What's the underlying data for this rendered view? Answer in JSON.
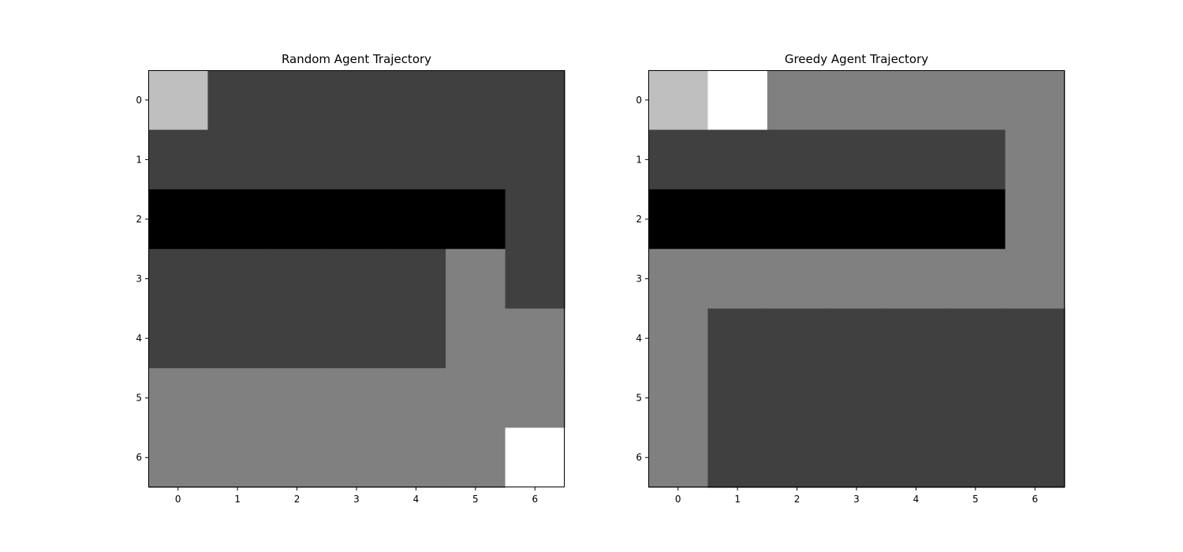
{
  "chart_data": [
    {
      "type": "heatmap",
      "title": "Random Agent Trajectory",
      "x_ticks": [
        "0",
        "1",
        "2",
        "3",
        "4",
        "5",
        "6"
      ],
      "y_ticks": [
        "0",
        "1",
        "2",
        "3",
        "4",
        "5",
        "6"
      ],
      "colormap": "gray",
      "value_range": [
        0,
        1
      ],
      "grid": false,
      "values": [
        [
          0.75,
          0.25,
          0.25,
          0.25,
          0.25,
          0.25,
          0.25
        ],
        [
          0.25,
          0.25,
          0.25,
          0.25,
          0.25,
          0.25,
          0.25
        ],
        [
          0.0,
          0.0,
          0.0,
          0.0,
          0.0,
          0.0,
          0.25
        ],
        [
          0.25,
          0.25,
          0.25,
          0.25,
          0.25,
          0.5,
          0.25
        ],
        [
          0.25,
          0.25,
          0.25,
          0.25,
          0.25,
          0.5,
          0.5
        ],
        [
          0.5,
          0.5,
          0.5,
          0.5,
          0.5,
          0.5,
          0.5
        ],
        [
          0.5,
          0.5,
          0.5,
          0.5,
          0.5,
          0.5,
          1.0
        ]
      ]
    },
    {
      "type": "heatmap",
      "title": "Greedy Agent Trajectory",
      "x_ticks": [
        "0",
        "1",
        "2",
        "3",
        "4",
        "5",
        "6"
      ],
      "y_ticks": [
        "0",
        "1",
        "2",
        "3",
        "4",
        "5",
        "6"
      ],
      "colormap": "gray",
      "value_range": [
        0,
        1
      ],
      "grid": false,
      "values": [
        [
          0.75,
          1.0,
          0.5,
          0.5,
          0.5,
          0.5,
          0.5
        ],
        [
          0.25,
          0.25,
          0.25,
          0.25,
          0.25,
          0.25,
          0.5
        ],
        [
          0.0,
          0.0,
          0.0,
          0.0,
          0.0,
          0.0,
          0.5
        ],
        [
          0.5,
          0.5,
          0.5,
          0.5,
          0.5,
          0.5,
          0.5
        ],
        [
          0.5,
          0.25,
          0.25,
          0.25,
          0.25,
          0.25,
          0.25
        ],
        [
          0.5,
          0.25,
          0.25,
          0.25,
          0.25,
          0.25,
          0.25
        ],
        [
          0.5,
          0.25,
          0.25,
          0.25,
          0.25,
          0.25,
          0.25
        ]
      ]
    }
  ]
}
